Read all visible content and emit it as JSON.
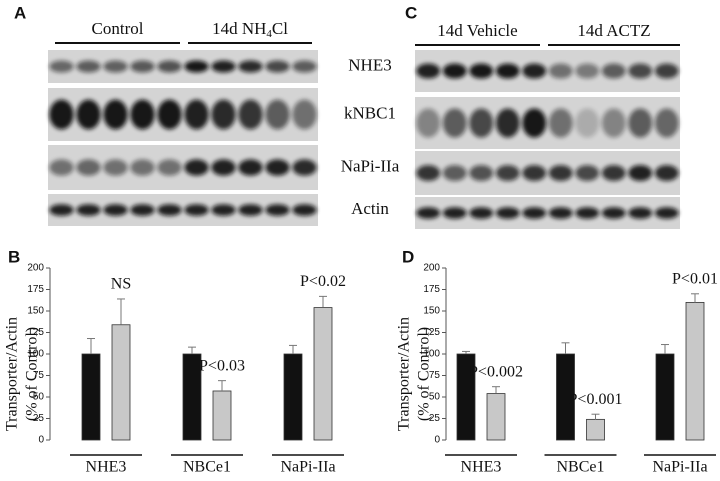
{
  "blots": [
    {
      "panel": "A",
      "groups": [
        [
          "Control"
        ],
        [
          "14d NH",
          "4",
          "Cl"
        ]
      ],
      "rows": [
        "NHE3",
        "kNBC1",
        "NaPi-IIa",
        "Actin"
      ]
    },
    {
      "panel": "C",
      "groups": [
        [
          "14d Vehicle"
        ],
        [
          "14d ACTZ"
        ]
      ]
    }
  ],
  "chart_data": [
    {
      "type": "bar",
      "panel": "B",
      "ylabel": [
        "Transporter/Actin",
        "(% of Control)"
      ],
      "categories": [
        "NHE3",
        "NBCe1",
        "NaPi-IIa"
      ],
      "series": [
        {
          "color": "#111111",
          "values": [
            100,
            100,
            100
          ],
          "errors": [
            18,
            8,
            10
          ]
        },
        {
          "color": "#c8c8c8",
          "values": [
            134,
            57,
            154
          ],
          "errors": [
            30,
            12,
            13
          ]
        }
      ],
      "annotations": [
        "NS",
        "P<0.03",
        "P<0.02"
      ],
      "ylim": [
        0,
        200
      ],
      "yticks": [
        0,
        25,
        50,
        75,
        100,
        125,
        150,
        175,
        200
      ]
    },
    {
      "type": "bar",
      "panel": "D",
      "ylabel": [
        "Transporter/Actin",
        "(% of Control)"
      ],
      "categories": [
        "NHE3",
        "NBCe1",
        "NaPi-IIa"
      ],
      "series": [
        {
          "color": "#111111",
          "values": [
            100,
            100,
            100
          ],
          "errors": [
            3,
            13,
            11
          ]
        },
        {
          "color": "#c8c8c8",
          "values": [
            54,
            24,
            160
          ],
          "errors": [
            8,
            6,
            10
          ]
        }
      ],
      "annotations": [
        "P<0.002",
        "P<0.001",
        "P<0.01"
      ],
      "ylim": [
        0,
        200
      ],
      "yticks": [
        0,
        25,
        50,
        75,
        100,
        125,
        150,
        175,
        200
      ]
    }
  ]
}
